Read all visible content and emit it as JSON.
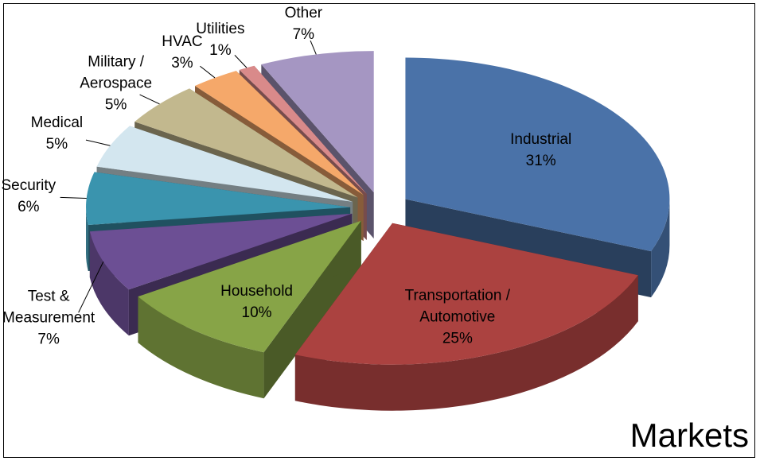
{
  "chart_data": {
    "type": "pie",
    "title": "Markets",
    "categories": [
      "Industrial",
      "Transportation / Automotive",
      "Household",
      "Test & Measurement",
      "Security",
      "Medical",
      "Military / Aerospace",
      "HVAC",
      "Utilities",
      "Other"
    ],
    "values": [
      31,
      25,
      10,
      7,
      6,
      5,
      5,
      3,
      1,
      7
    ],
    "value_labels": [
      "31%",
      "25%",
      "10%",
      "7%",
      "6%",
      "5%",
      "5%",
      "3%",
      "1%",
      "7%"
    ],
    "colors": [
      "#4a72a8",
      "#ab4240",
      "#87a447",
      "#6c4f94",
      "#3a94ae",
      "#d3e6ef",
      "#c2b88e",
      "#f5a86a",
      "#d98a8a",
      "#a596c2"
    ]
  }
}
